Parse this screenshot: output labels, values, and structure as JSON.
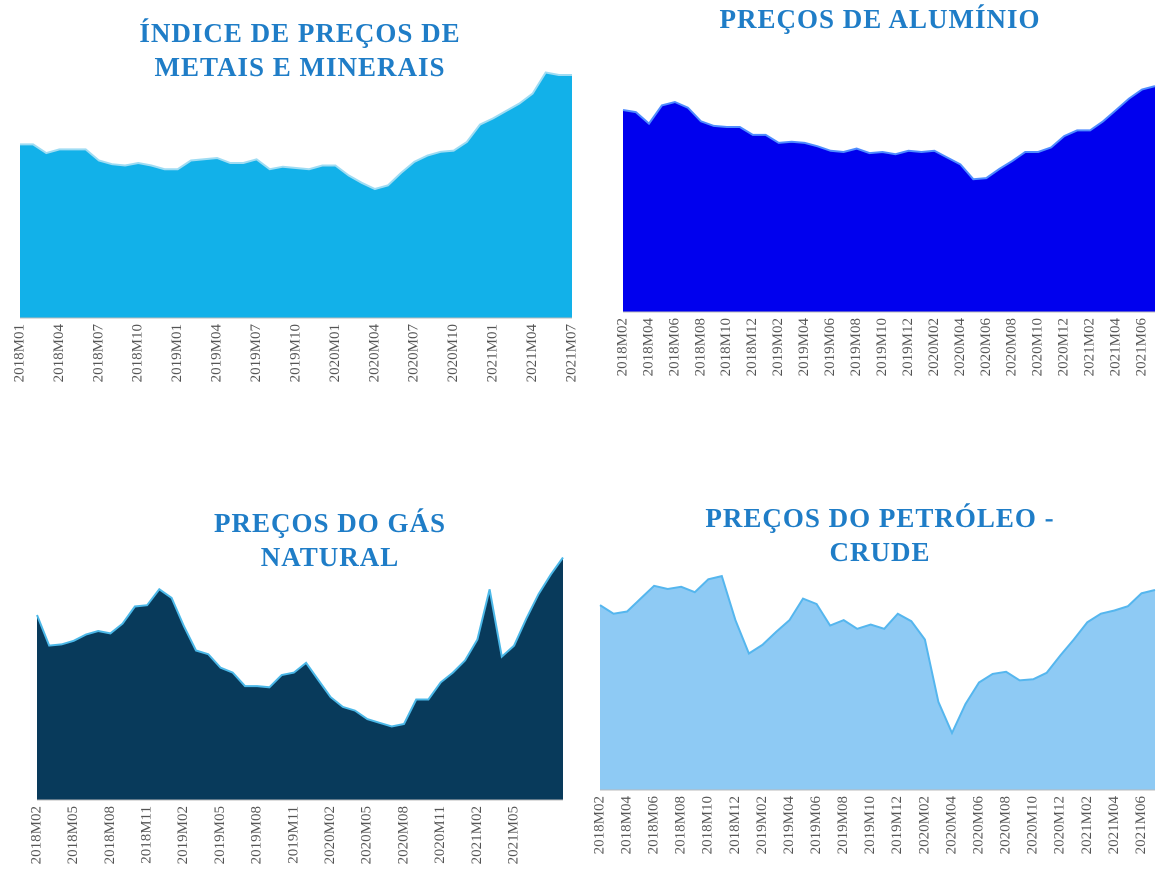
{
  "chart_data": [
    {
      "type": "area",
      "title": [
        "ÍNDICE DE PREÇOS DE",
        "METAIS E MINERAIS"
      ],
      "categories": [
        "2018M01",
        null,
        null,
        "2018M04",
        null,
        null,
        "2018M07",
        null,
        null,
        "2018M10",
        null,
        null,
        "2019M01",
        null,
        null,
        "2019M04",
        null,
        null,
        "2019M07",
        null,
        null,
        "2019M10",
        null,
        null,
        "2020M01",
        null,
        null,
        "2020M04",
        null,
        null,
        "2020M07",
        null,
        null,
        "2020M10",
        null,
        null,
        "2021M01",
        null,
        null,
        "2021M04",
        null,
        null,
        "2021M07"
      ],
      "values": [
        70,
        70,
        66.5,
        68,
        68,
        68,
        63.5,
        62,
        61.5,
        62.5,
        61.5,
        60,
        60,
        63.5,
        64,
        64.5,
        62.5,
        62.5,
        64,
        60,
        61,
        60.5,
        60,
        61.5,
        61.5,
        57.5,
        54.5,
        52,
        53.5,
        58.5,
        63,
        65.5,
        67,
        67.5,
        71,
        78,
        80.5,
        83.5,
        86.5,
        90.5,
        99,
        98,
        98
      ],
      "ylim": [
        0,
        100
      ],
      "color": "#12b1e9",
      "line_color": "#9fdcf3"
    },
    {
      "type": "area",
      "title": [
        "PREÇOS DE ALUMÍNIO"
      ],
      "categories": [
        "2018M02",
        null,
        "2018M04",
        null,
        "2018M06",
        null,
        "2018M08",
        null,
        "2018M10",
        null,
        "2018M12",
        null,
        "2019M02",
        null,
        "2019M04",
        null,
        "2019M06",
        null,
        "2019M08",
        null,
        "2019M10",
        null,
        "2019M12",
        null,
        "2020M02",
        null,
        "2020M04",
        null,
        "2020M06",
        null,
        "2020M08",
        null,
        "2020M10",
        null,
        "2020M12",
        null,
        "2021M02",
        null,
        "2021M04",
        null,
        "2021M06",
        null
      ],
      "values": [
        89,
        88,
        83,
        91,
        92.5,
        90,
        84,
        82,
        81.5,
        81.5,
        78,
        78,
        74.5,
        75,
        74.5,
        73,
        71,
        70.5,
        72,
        70,
        70.5,
        69.5,
        71,
        70.5,
        71,
        68,
        65,
        58.5,
        59,
        63,
        66.5,
        70.5,
        70.5,
        72.5,
        77.5,
        80,
        80,
        84,
        89,
        94,
        98,
        99.5
      ],
      "ylim": [
        0,
        100
      ],
      "color": "#0000ee",
      "line_color": "#4f8cff"
    },
    {
      "type": "area",
      "title": [
        "PREÇOS DO GÁS",
        "NATURAL"
      ],
      "categories": [
        "2018M02",
        null,
        null,
        "2018M05",
        null,
        null,
        "2018M08",
        null,
        null,
        "2018M11",
        null,
        null,
        "2019M02",
        null,
        null,
        "2019M05",
        null,
        null,
        "2019M08",
        null,
        null,
        "2019M11",
        null,
        null,
        "2020M02",
        null,
        null,
        "2020M05",
        null,
        null,
        "2020M08",
        null,
        null,
        "2020M11",
        null,
        null,
        "2021M02",
        null,
        null,
        "2021M05",
        null,
        null,
        null,
        null
      ],
      "values": [
        75.5,
        63,
        63.5,
        65,
        67.5,
        69,
        68,
        72,
        79,
        79.5,
        86,
        82.5,
        71,
        61,
        59.5,
        54,
        52,
        46.5,
        46.5,
        46,
        51,
        52,
        56,
        49,
        42,
        38,
        36.5,
        33,
        31.5,
        30,
        31,
        41,
        41,
        48,
        52,
        57,
        65.5,
        86,
        58.5,
        63,
        74,
        84,
        92,
        99
      ],
      "ylim": [
        0,
        100
      ],
      "color": "#083a5b",
      "line_color": "#4cb8e8"
    },
    {
      "type": "area",
      "title": [
        "PREÇOS DO PETRÓLEO -",
        "CRUDE"
      ],
      "categories": [
        "2018M02",
        null,
        "2018M04",
        null,
        "2018M06",
        null,
        "2018M08",
        null,
        "2018M10",
        null,
        "2018M12",
        null,
        "2019M02",
        null,
        "2019M04",
        null,
        "2019M06",
        null,
        "2019M08",
        null,
        "2019M10",
        null,
        "2019M12",
        null,
        "2020M02",
        null,
        "2020M04",
        null,
        "2020M06",
        null,
        "2020M08",
        null,
        "2020M10",
        null,
        "2020M12",
        null,
        "2021M02",
        null,
        "2021M04",
        null,
        "2021M06",
        null
      ],
      "values": [
        86,
        82,
        83,
        89,
        95,
        93.5,
        94.5,
        92,
        98,
        99.5,
        79,
        63.5,
        67.5,
        73.5,
        79,
        89,
        86.5,
        76.5,
        79,
        75,
        77,
        75,
        82,
        78.5,
        70,
        41,
        26.5,
        40,
        50,
        54,
        55,
        51,
        51.5,
        54.5,
        62.5,
        70,
        78,
        82,
        83.5,
        85.5,
        91.5,
        93
      ],
      "ylim": [
        0,
        100
      ],
      "color": "#8ecaf4",
      "line_color": "#55b6ee"
    }
  ]
}
